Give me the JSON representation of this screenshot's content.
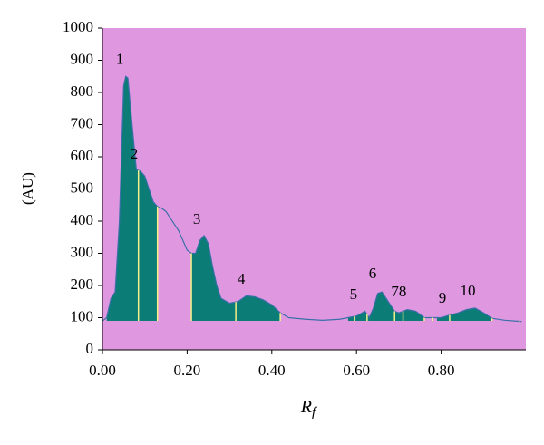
{
  "chart_data": {
    "type": "densitogram",
    "y_label": "(AU)",
    "x_label": "R",
    "x_label_sub": "f",
    "xlim": [
      0,
      1.0
    ],
    "ylim": [
      0,
      1000
    ],
    "xticks": [
      {
        "value": 0,
        "label": "0.00"
      },
      {
        "value": 0.2,
        "label": "0.20"
      },
      {
        "value": 0.4,
        "label": "0.40"
      },
      {
        "value": 0.6,
        "label": "0.60"
      },
      {
        "value": 0.8,
        "label": "0.80"
      }
    ],
    "yticks": [
      0,
      100,
      200,
      300,
      400,
      500,
      600,
      700,
      800,
      900,
      1000
    ],
    "background": "#df98e0",
    "line_color": "#3a6fa8",
    "fill_color": "#0b7c76",
    "marker_color": "#f4f08a",
    "baseline": 90,
    "x": [
      0,
      0.01,
      0.02,
      0.03,
      0.04,
      0.05,
      0.055,
      0.06,
      0.07,
      0.08,
      0.09,
      0.1,
      0.11,
      0.12,
      0.13,
      0.14,
      0.15,
      0.16,
      0.17,
      0.18,
      0.19,
      0.2,
      0.21,
      0.22,
      0.23,
      0.24,
      0.25,
      0.26,
      0.27,
      0.28,
      0.3,
      0.32,
      0.34,
      0.36,
      0.38,
      0.4,
      0.42,
      0.44,
      0.48,
      0.52,
      0.56,
      0.6,
      0.62,
      0.63,
      0.64,
      0.65,
      0.66,
      0.67,
      0.69,
      0.7,
      0.72,
      0.74,
      0.76,
      0.8,
      0.82,
      0.84,
      0.86,
      0.88,
      0.9,
      0.92,
      0.95,
      0.99
    ],
    "values": [
      90,
      100,
      160,
      180,
      400,
      820,
      850,
      845,
      700,
      560,
      555,
      540,
      500,
      460,
      445,
      440,
      430,
      410,
      390,
      370,
      340,
      310,
      300,
      300,
      340,
      355,
      330,
      260,
      200,
      160,
      145,
      150,
      168,
      165,
      155,
      140,
      115,
      100,
      95,
      92,
      95,
      105,
      120,
      100,
      130,
      175,
      180,
      160,
      120,
      115,
      125,
      120,
      100,
      100,
      108,
      115,
      125,
      130,
      115,
      98,
      92,
      88
    ],
    "fills": [
      [
        0.01,
        0.13
      ],
      [
        0.21,
        0.42
      ],
      [
        0.58,
        0.63
      ],
      [
        0.63,
        0.69
      ],
      [
        0.69,
        0.76
      ],
      [
        0.79,
        0.92
      ]
    ],
    "markers": [
      0.085,
      0.13,
      0.21,
      0.315,
      0.42,
      0.595,
      0.625,
      0.69,
      0.71,
      0.76,
      0.78,
      0.82,
      0.92,
      0.985
    ],
    "annotations": [
      {
        "text": "1",
        "x": 0.041,
        "y": 900
      },
      {
        "text": "2",
        "x": 0.075,
        "y": 605
      },
      {
        "text": "3",
        "x": 0.223,
        "y": 403
      },
      {
        "text": "4",
        "x": 0.328,
        "y": 217
      },
      {
        "text": "5",
        "x": 0.593,
        "y": 169
      },
      {
        "text": "6",
        "x": 0.638,
        "y": 234
      },
      {
        "text": "78",
        "x": 0.7,
        "y": 177
      },
      {
        "text": "9",
        "x": 0.803,
        "y": 158
      },
      {
        "text": "10",
        "x": 0.863,
        "y": 180
      }
    ]
  }
}
